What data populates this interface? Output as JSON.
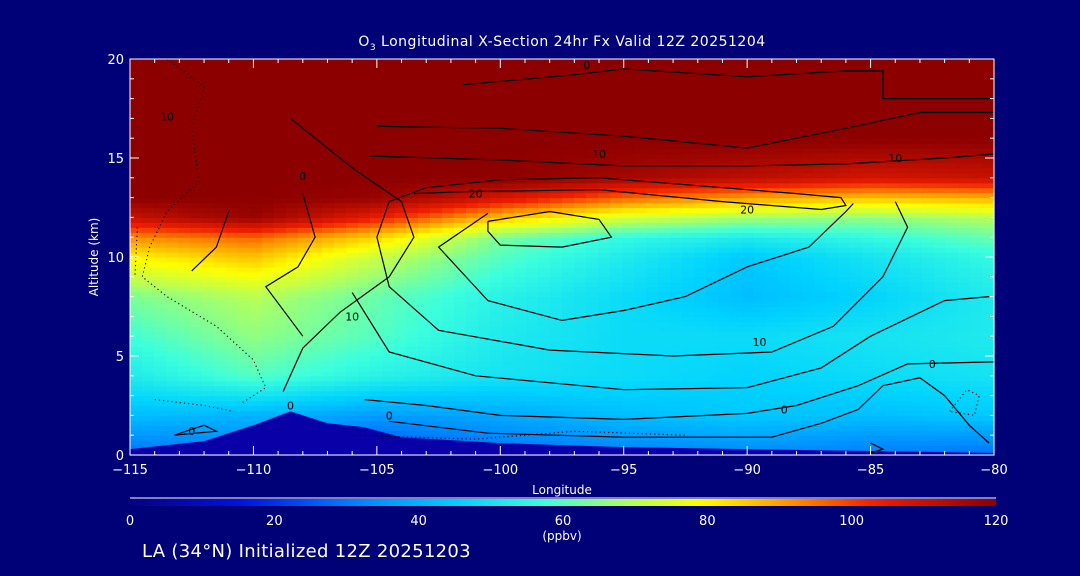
{
  "title": {
    "o_prefix": "O",
    "o_sub": "3",
    "text": " Longitudinal X-Section 24hr  Fx Valid 12Z 20251204"
  },
  "footer": "LA (34°N) Initialized 12Z 20251203",
  "chart_data": {
    "type": "heatmap",
    "xlabel": "Longitude",
    "ylabel": "Altitude (km)",
    "xlim": [
      -115,
      -80
    ],
    "ylim": [
      0,
      20
    ],
    "xticks": [
      -115,
      -110,
      -105,
      -100,
      -95,
      -90,
      -85,
      -80
    ],
    "xtick_labels": [
      "−115",
      "−110",
      "−105",
      "−100",
      "−95",
      "−90",
      "−85",
      "−80"
    ],
    "yticks": [
      0,
      5,
      10,
      15,
      20
    ],
    "ytick_labels": [
      "0",
      "5",
      "10",
      "15",
      "20"
    ],
    "colorbar": {
      "label": "(ppbv)",
      "range": [
        0,
        120
      ],
      "ticks": [
        0,
        20,
        40,
        60,
        80,
        100,
        120
      ],
      "tick_labels": [
        "0",
        "20",
        "40",
        "60",
        "80",
        "100",
        "120"
      ]
    },
    "field": {
      "x": [
        -115,
        -110,
        -105,
        -100,
        -95,
        -90,
        -85,
        -80
      ],
      "y": [
        0,
        2,
        4,
        6,
        8,
        10,
        11,
        12,
        13,
        14,
        16,
        20
      ],
      "values": [
        [
          28,
          30,
          20,
          28,
          30,
          32,
          30,
          28
        ],
        [
          42,
          40,
          36,
          38,
          42,
          44,
          42,
          44
        ],
        [
          52,
          60,
          54,
          50,
          48,
          46,
          48,
          50
        ],
        [
          58,
          66,
          60,
          52,
          48,
          48,
          50,
          52
        ],
        [
          64,
          70,
          62,
          54,
          48,
          42,
          46,
          52
        ],
        [
          80,
          86,
          72,
          60,
          52,
          44,
          50,
          56
        ],
        [
          92,
          96,
          84,
          64,
          56,
          52,
          56,
          62
        ],
        [
          110,
          118,
          104,
          86,
          74,
          68,
          66,
          70
        ],
        [
          120,
          120,
          118,
          108,
          96,
          90,
          86,
          88
        ],
        [
          120,
          120,
          120,
          120,
          116,
          112,
          108,
          110
        ],
        [
          120,
          120,
          120,
          120,
          120,
          120,
          120,
          120
        ],
        [
          120,
          120,
          120,
          120,
          120,
          120,
          120,
          120
        ]
      ]
    },
    "terrain": [
      [
        -115,
        0.3
      ],
      [
        -112,
        0.7
      ],
      [
        -110,
        1.5
      ],
      [
        -108.5,
        2.2
      ],
      [
        -107,
        1.6
      ],
      [
        -105.5,
        1.4
      ],
      [
        -104,
        0.9
      ],
      [
        -100,
        0.6
      ],
      [
        -95,
        0.4
      ],
      [
        -90,
        0.3
      ],
      [
        -85,
        0.2
      ],
      [
        -80,
        0.1
      ]
    ],
    "contour_labels": [
      {
        "text": "10",
        "x": -113.5,
        "y": 17.1
      },
      {
        "text": "0",
        "x": -108,
        "y": 14.1
      },
      {
        "text": "0",
        "x": -96.5,
        "y": 19.7
      },
      {
        "text": "10",
        "x": -96,
        "y": 15.2
      },
      {
        "text": "10",
        "x": -84,
        "y": 15.0
      },
      {
        "text": "20",
        "x": -101,
        "y": 13.2
      },
      {
        "text": "20",
        "x": -90,
        "y": 12.4
      },
      {
        "text": "10",
        "x": -106,
        "y": 7.0
      },
      {
        "text": "10",
        "x": -89.5,
        "y": 5.7
      },
      {
        "text": "0",
        "x": -82.5,
        "y": 4.6
      },
      {
        "text": "0",
        "x": -108.5,
        "y": 2.5
      },
      {
        "text": "0",
        "x": -104.5,
        "y": 2.0
      },
      {
        "text": "0",
        "x": -88.5,
        "y": 2.3
      },
      {
        "text": "0",
        "x": -112.5,
        "y": 1.2
      }
    ],
    "contours": [
      {
        "style": "solid",
        "points": [
          [
            -108.5,
            17
          ],
          [
            -106,
            14.5
          ],
          [
            -104,
            12.8
          ],
          [
            -103.5,
            11
          ],
          [
            -104.5,
            9
          ],
          [
            -106.5,
            7.2
          ],
          [
            -108,
            5.4
          ],
          [
            -108.8,
            3.2
          ]
        ]
      },
      {
        "style": "solid",
        "points": [
          [
            -108,
            13.2
          ],
          [
            -107.5,
            11
          ],
          [
            -108.2,
            9.5
          ],
          [
            -109.5,
            8.5
          ],
          [
            -108,
            6
          ]
        ]
      },
      {
        "style": "solid",
        "points": [
          [
            -111,
            12.3
          ],
          [
            -111.5,
            10.5
          ],
          [
            -112.5,
            9.3
          ]
        ]
      },
      {
        "style": "solid",
        "points": [
          [
            -105.3,
            15.1
          ],
          [
            -100,
            14.9
          ],
          [
            -95,
            14.6
          ],
          [
            -90,
            14.6
          ],
          [
            -86,
            14.7
          ],
          [
            -82,
            15.0
          ],
          [
            -80,
            15.2
          ]
        ]
      },
      {
        "style": "solid",
        "points": [
          [
            -105,
            16.6
          ],
          [
            -100,
            16.5
          ],
          [
            -95,
            16.1
          ],
          [
            -90,
            15.5
          ],
          [
            -86,
            16.5
          ],
          [
            -83,
            17.3
          ],
          [
            -80,
            17.3
          ]
        ]
      },
      {
        "style": "solid",
        "points": [
          [
            -101.5,
            18.7
          ],
          [
            -97,
            19.2
          ],
          [
            -95,
            19.5
          ],
          [
            -90,
            19.1
          ],
          [
            -86,
            19.4
          ],
          [
            -84.5,
            19.4
          ],
          [
            -84.5,
            18.0
          ],
          [
            -80,
            18.0
          ]
        ]
      },
      {
        "style": "solid",
        "points": [
          [
            -103.5,
            13.2
          ],
          [
            -101.5,
            13.3
          ],
          [
            -96,
            13.4
          ],
          [
            -91,
            12.8
          ],
          [
            -87,
            12.4
          ],
          [
            -86,
            12.6
          ],
          [
            -86.2,
            13.0
          ],
          [
            -88,
            13.2
          ],
          [
            -92,
            13.6
          ],
          [
            -96,
            14.0
          ],
          [
            -100,
            13.9
          ],
          [
            -103,
            13.5
          ],
          [
            -104.5,
            12.8
          ],
          [
            -105,
            11
          ],
          [
            -104.5,
            8.5
          ],
          [
            -102.5,
            6.3
          ],
          [
            -98,
            5.3
          ],
          [
            -93,
            5.0
          ],
          [
            -89,
            5.2
          ],
          [
            -86.5,
            6.5
          ],
          [
            -84.5,
            9.0
          ],
          [
            -83.5,
            11.5
          ],
          [
            -84,
            12.8
          ]
        ]
      },
      {
        "style": "solid",
        "points": [
          [
            -100.5,
            11.8
          ],
          [
            -98,
            12.3
          ],
          [
            -96,
            11.9
          ],
          [
            -95.5,
            11.0
          ],
          [
            -97.5,
            10.5
          ],
          [
            -100,
            10.6
          ],
          [
            -100.5,
            11.3
          ],
          [
            -100.5,
            11.8
          ]
        ]
      },
      {
        "style": "solid",
        "points": [
          [
            -100.5,
            12.2
          ],
          [
            -102.5,
            10.5
          ],
          [
            -100.5,
            7.8
          ],
          [
            -97.5,
            6.8
          ],
          [
            -95,
            7.3
          ],
          [
            -92.5,
            8.0
          ],
          [
            -90,
            9.5
          ],
          [
            -87.5,
            10.5
          ],
          [
            -86,
            12.3
          ],
          [
            -85.7,
            12.7
          ]
        ]
      },
      {
        "style": "solid",
        "points": [
          [
            -106,
            8.2
          ],
          [
            -104.5,
            5.2
          ],
          [
            -101,
            4.0
          ],
          [
            -95,
            3.3
          ],
          [
            -90,
            3.4
          ],
          [
            -87,
            4.4
          ],
          [
            -85,
            6.0
          ],
          [
            -82,
            7.8
          ],
          [
            -80.2,
            8.0
          ]
        ]
      },
      {
        "style": "solid",
        "points": [
          [
            -105.5,
            2.8
          ],
          [
            -103,
            2.5
          ],
          [
            -100,
            2.0
          ],
          [
            -95,
            1.8
          ],
          [
            -90,
            2.1
          ],
          [
            -88,
            2.5
          ],
          [
            -85.5,
            3.5
          ],
          [
            -83.5,
            4.6
          ],
          [
            -80,
            4.7
          ]
        ]
      },
      {
        "style": "solid",
        "points": [
          [
            -104.5,
            1.7
          ],
          [
            -100.5,
            1.1
          ],
          [
            -95,
            0.9
          ],
          [
            -89,
            0.9
          ],
          [
            -87,
            1.6
          ],
          [
            -85.5,
            2.3
          ],
          [
            -84.5,
            3.5
          ],
          [
            -83,
            3.9
          ],
          [
            -82,
            3.0
          ],
          [
            -81,
            1.5
          ],
          [
            -80.2,
            0.6
          ]
        ]
      },
      {
        "style": "solid",
        "points": [
          [
            -85,
            0.6
          ],
          [
            -84.5,
            0.3
          ],
          [
            -85,
            0.1
          ]
        ]
      },
      {
        "style": "solid",
        "points": [
          [
            -113.2,
            1.0
          ],
          [
            -112.5,
            1.3
          ],
          [
            -112,
            1.5
          ],
          [
            -111.5,
            1.2
          ],
          [
            -113.2,
            1.0
          ]
        ]
      },
      {
        "style": "dotted",
        "points": [
          [
            -113.5,
            20
          ],
          [
            -112,
            18.6
          ],
          [
            -112.5,
            16.5
          ],
          [
            -112.2,
            13.8
          ],
          [
            -113.5,
            12.3
          ],
          [
            -114.2,
            10.5
          ],
          [
            -114.5,
            9.0
          ],
          [
            -113.5,
            8.0
          ],
          [
            -111.5,
            6.5
          ],
          [
            -110,
            4.8
          ],
          [
            -109.5,
            3.4
          ],
          [
            -110.5,
            2.6
          ]
        ]
      },
      {
        "style": "dotted",
        "points": [
          [
            -114.7,
            11.5
          ],
          [
            -114.8,
            9.0
          ]
        ]
      },
      {
        "style": "dotted",
        "points": [
          [
            -114,
            2.8
          ],
          [
            -112,
            2.5
          ],
          [
            -110.8,
            2.2
          ]
        ]
      },
      {
        "style": "dotted",
        "points": [
          [
            -106,
            1.0
          ],
          [
            -101,
            0.8
          ],
          [
            -97,
            1.2
          ],
          [
            -92.5,
            1.0
          ]
        ]
      },
      {
        "style": "dotted",
        "points": [
          [
            -81.8,
            2.2
          ],
          [
            -81.1,
            3.3
          ],
          [
            -80.6,
            3.0
          ],
          [
            -80.8,
            2.0
          ],
          [
            -81.8,
            2.2
          ]
        ]
      }
    ]
  }
}
